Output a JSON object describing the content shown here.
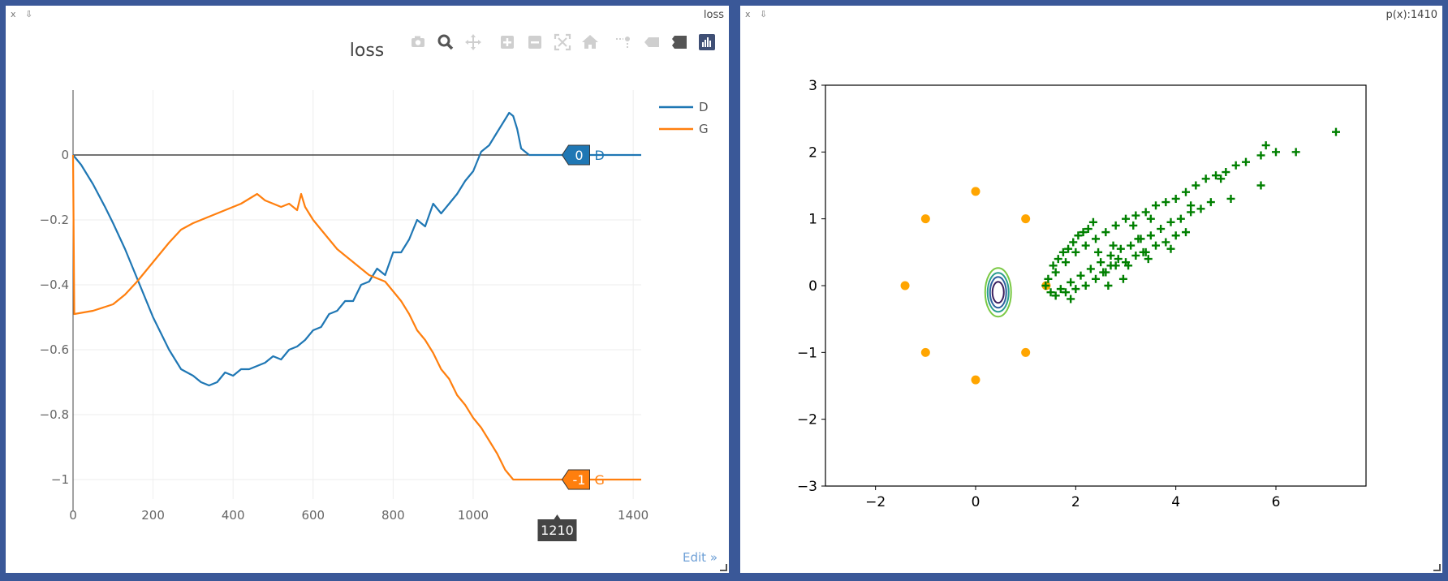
{
  "left_pane": {
    "controls": {
      "close": "x",
      "pin": "⇩"
    },
    "title": "loss",
    "edit_link": "Edit »",
    "modebar": [
      {
        "icon": "camera-icon",
        "label": "Download plot as a png"
      },
      {
        "icon": "zoom-icon",
        "label": "Zoom"
      },
      {
        "icon": "pan-icon",
        "label": "Pan"
      },
      {
        "icon": "zoom-in-icon",
        "label": "Zoom in"
      },
      {
        "icon": "zoom-out-icon",
        "label": "Zoom out"
      },
      {
        "icon": "autoscale-icon",
        "label": "Autoscale"
      },
      {
        "icon": "home-icon",
        "label": "Reset axes"
      },
      {
        "icon": "spike-lines-icon",
        "label": "Toggle spike lines"
      },
      {
        "icon": "hover-closest-icon",
        "label": "Show closest data on hover"
      },
      {
        "icon": "hover-compare-icon",
        "label": "Compare data on hover"
      },
      {
        "icon": "plotly-logo-icon",
        "label": "Produced with Plotly"
      }
    ],
    "hover": {
      "x_label": "1210",
      "d_value": "0",
      "g_value": "-1"
    },
    "colors": {
      "D": "#1f77b4",
      "G": "#ff7f0e",
      "hover_box": "#444444"
    }
  },
  "right_pane": {
    "controls": {
      "close": "x",
      "pin": "⇩"
    },
    "title": "p(x):1410",
    "colors": {
      "real": "#ffa500",
      "fake": "#008000",
      "contour": [
        "#7ac943",
        "#2a9d8f",
        "#2c5f9e",
        "#3b1f5e"
      ]
    }
  },
  "chart_data": [
    {
      "type": "line",
      "title": "loss",
      "xlim": [
        0,
        1420
      ],
      "ylim": [
        -1.06,
        0.2
      ],
      "xticks": [
        0,
        200,
        400,
        600,
        800,
        1000,
        1400
      ],
      "xtick_labels": [
        "0",
        "200",
        "400",
        "600",
        "800",
        "1000",
        "1400"
      ],
      "yticks": [
        0,
        -0.2,
        -0.4,
        -0.6,
        -0.8,
        -1
      ],
      "ytick_labels": [
        "0",
        "−0.2",
        "−0.4",
        "−0.6",
        "−0.8",
        "−1"
      ],
      "grid": true,
      "legend": "top-right",
      "series": [
        {
          "name": "D",
          "x": [
            0,
            20,
            50,
            80,
            100,
            130,
            160,
            200,
            240,
            270,
            300,
            320,
            340,
            360,
            380,
            400,
            420,
            440,
            460,
            480,
            500,
            520,
            540,
            560,
            580,
            600,
            620,
            640,
            660,
            680,
            700,
            720,
            740,
            760,
            780,
            800,
            820,
            840,
            860,
            880,
            900,
            920,
            940,
            960,
            980,
            1000,
            1020,
            1040,
            1060,
            1080,
            1090,
            1100,
            1110,
            1120,
            1140,
            1160,
            1200,
            1420
          ],
          "y": [
            0,
            -0.03,
            -0.09,
            -0.16,
            -0.21,
            -0.29,
            -0.38,
            -0.5,
            -0.6,
            -0.66,
            -0.68,
            -0.7,
            -0.71,
            -0.7,
            -0.67,
            -0.68,
            -0.66,
            -0.66,
            -0.65,
            -0.64,
            -0.62,
            -0.63,
            -0.6,
            -0.59,
            -0.57,
            -0.54,
            -0.53,
            -0.49,
            -0.48,
            -0.45,
            -0.45,
            -0.4,
            -0.39,
            -0.35,
            -0.37,
            -0.3,
            -0.3,
            -0.26,
            -0.2,
            -0.22,
            -0.15,
            -0.18,
            -0.15,
            -0.12,
            -0.08,
            -0.05,
            0.01,
            0.03,
            0.07,
            0.11,
            0.13,
            0.12,
            0.08,
            0.02,
            0.0,
            0.0,
            0.0,
            0.0
          ]
        },
        {
          "name": "G",
          "x": [
            0,
            3,
            50,
            100,
            130,
            160,
            200,
            240,
            270,
            300,
            340,
            380,
            420,
            460,
            480,
            500,
            520,
            540,
            560,
            570,
            580,
            600,
            620,
            640,
            660,
            680,
            700,
            720,
            740,
            760,
            780,
            800,
            820,
            840,
            860,
            880,
            900,
            920,
            940,
            960,
            980,
            1000,
            1020,
            1040,
            1060,
            1080,
            1100,
            1120,
            1200,
            1420
          ],
          "y": [
            0,
            -0.49,
            -0.48,
            -0.46,
            -0.43,
            -0.39,
            -0.33,
            -0.27,
            -0.23,
            -0.21,
            -0.19,
            -0.17,
            -0.15,
            -0.12,
            -0.14,
            -0.15,
            -0.16,
            -0.15,
            -0.17,
            -0.12,
            -0.16,
            -0.2,
            -0.23,
            -0.26,
            -0.29,
            -0.31,
            -0.33,
            -0.35,
            -0.37,
            -0.38,
            -0.39,
            -0.42,
            -0.45,
            -0.49,
            -0.54,
            -0.57,
            -0.61,
            -0.66,
            -0.69,
            -0.74,
            -0.77,
            -0.81,
            -0.84,
            -0.88,
            -0.92,
            -0.97,
            -1.0,
            -1.0,
            -1.0,
            -1.0
          ]
        }
      ]
    },
    {
      "type": "scatter",
      "title": "",
      "xlim": [
        -3,
        7.8
      ],
      "ylim": [
        -3,
        3
      ],
      "xticks": [
        -2,
        0,
        2,
        4,
        6
      ],
      "xtick_labels": [
        "−2",
        "0",
        "2",
        "4",
        "6"
      ],
      "yticks": [
        3,
        2,
        1,
        0,
        -1,
        -2,
        -3
      ],
      "ytick_labels": [
        "3",
        "2",
        "1",
        "0",
        "−1",
        "−2",
        "−3"
      ],
      "grid": false,
      "series": [
        {
          "name": "",
          "marker": "circle",
          "color": "#ffa500",
          "x": [
            -1.41,
            -1.0,
            0.0,
            1.0,
            1.41,
            1.0,
            0.0,
            -1.0
          ],
          "y": [
            0.0,
            1.0,
            1.41,
            1.0,
            0.0,
            -1.0,
            -1.41,
            -1.0
          ]
        },
        {
          "name": "",
          "marker": "plus",
          "color": "#008000",
          "x": [
            1.4,
            1.6,
            1.8,
            2.0,
            2.2,
            2.4,
            2.6,
            2.8,
            3.0,
            3.2,
            3.4,
            3.6,
            3.8,
            4.0,
            4.2,
            4.4,
            4.6,
            4.8,
            5.0,
            5.2,
            5.4,
            5.7,
            6.0,
            6.4,
            7.2,
            1.5,
            1.7,
            1.9,
            2.1,
            2.3,
            2.5,
            2.7,
            2.9,
            3.1,
            3.3,
            3.5,
            3.7,
            3.9,
            4.1,
            4.3,
            4.5,
            4.7,
            1.6,
            1.8,
            2.0,
            2.2,
            2.4,
            2.6,
            2.8,
            3.0,
            3.2,
            3.4,
            3.6,
            3.8,
            4.0,
            4.2,
            1.45,
            1.55,
            1.65,
            1.75,
            1.85,
            1.95,
            2.05,
            2.15,
            2.25,
            2.35,
            2.45,
            2.55,
            2.65,
            2.75,
            2.85,
            2.95,
            3.05,
            3.15,
            3.25,
            3.35,
            3.45,
            5.7,
            5.1,
            4.3,
            3.5,
            2.7,
            1.9,
            5.8,
            4.9,
            3.9
          ],
          "y": [
            0.0,
            0.2,
            0.35,
            0.5,
            0.6,
            0.7,
            0.8,
            0.9,
            1.0,
            1.05,
            1.1,
            1.2,
            1.25,
            1.3,
            1.4,
            1.5,
            1.6,
            1.65,
            1.7,
            1.8,
            1.85,
            1.95,
            2.0,
            2.0,
            2.3,
            -0.1,
            -0.05,
            0.05,
            0.15,
            0.25,
            0.35,
            0.45,
            0.55,
            0.6,
            0.7,
            0.75,
            0.85,
            0.95,
            1.0,
            1.1,
            1.15,
            1.25,
            -0.15,
            -0.1,
            -0.05,
            0.0,
            0.1,
            0.2,
            0.3,
            0.35,
            0.45,
            0.5,
            0.6,
            0.65,
            0.75,
            0.8,
            0.1,
            0.3,
            0.4,
            0.5,
            0.55,
            0.65,
            0.75,
            0.8,
            0.85,
            0.95,
            0.5,
            0.2,
            0.0,
            0.6,
            0.4,
            0.1,
            0.3,
            0.9,
            0.7,
            0.5,
            0.4,
            1.5,
            1.3,
            1.2,
            1.0,
            0.3,
            -0.2,
            2.1,
            1.6,
            0.55
          ]
        }
      ],
      "contour_center": [
        0.45,
        -0.1
      ]
    }
  ]
}
